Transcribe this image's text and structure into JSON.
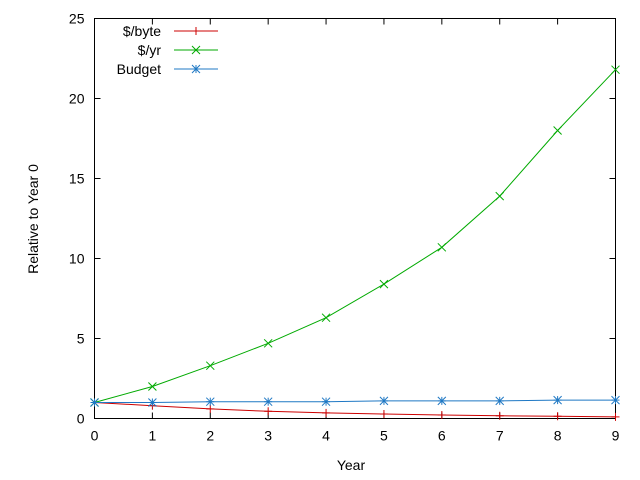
{
  "chart_data": {
    "type": "line",
    "title": "",
    "xlabel": "Year",
    "ylabel": "Relative to Year 0",
    "xlim": [
      0,
      9
    ],
    "ylim": [
      0,
      25
    ],
    "xticks": [
      0,
      1,
      2,
      3,
      4,
      5,
      6,
      7,
      8,
      9
    ],
    "yticks": [
      0,
      5,
      10,
      15,
      20,
      25
    ],
    "grid": false,
    "legend_position": "top-left",
    "series": [
      {
        "name": "$/byte",
        "color": "#cc0000",
        "marker": "plus",
        "x": [
          0,
          1,
          2,
          3,
          4,
          5,
          6,
          7,
          8,
          9
        ],
        "y": [
          1.0,
          0.8,
          0.6,
          0.45,
          0.35,
          0.28,
          0.22,
          0.17,
          0.14,
          0.1
        ]
      },
      {
        "name": "$/yr",
        "color": "#00aa00",
        "marker": "x",
        "x": [
          0,
          1,
          2,
          3,
          4,
          5,
          6,
          7,
          8,
          9
        ],
        "y": [
          1.0,
          2.0,
          3.3,
          4.7,
          6.3,
          8.4,
          10.7,
          13.9,
          18.0,
          21.8
        ]
      },
      {
        "name": "Budget",
        "color": "#1f78c4",
        "marker": "star",
        "x": [
          0,
          1,
          2,
          3,
          4,
          5,
          6,
          7,
          8,
          9
        ],
        "y": [
          1.0,
          1.0,
          1.05,
          1.05,
          1.05,
          1.1,
          1.1,
          1.1,
          1.15,
          1.15
        ]
      }
    ]
  }
}
